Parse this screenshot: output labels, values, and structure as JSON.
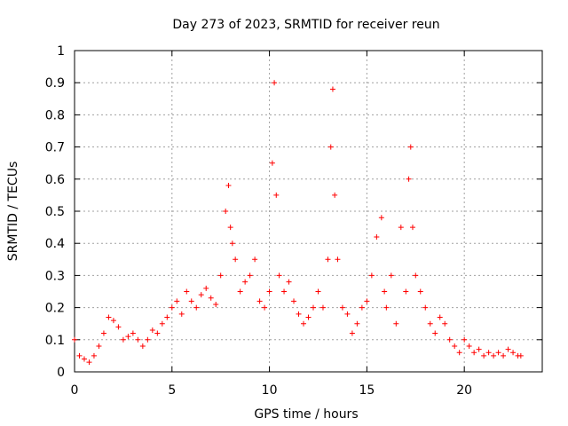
{
  "chart_data": {
    "type": "scatter",
    "title": "Day 273 of 2023, SRMTID for receiver reun",
    "xlabel": "GPS time / hours",
    "ylabel": "SRMTID / TECUs",
    "xlim": [
      0,
      24
    ],
    "ylim": [
      0,
      1
    ],
    "xticks": [
      0,
      5,
      10,
      15,
      20
    ],
    "xtick_labels": [
      "0",
      "5",
      "10",
      "15",
      "20"
    ],
    "yticks": [
      0,
      0.1,
      0.2,
      0.3,
      0.4,
      0.5,
      0.6,
      0.7,
      0.8,
      0.9,
      1
    ],
    "ytick_labels": [
      "0",
      "0.1",
      "0.2",
      "0.3",
      "0.4",
      "0.5",
      "0.6",
      "0.7",
      "0.8",
      "0.9",
      "1"
    ],
    "grid": true,
    "marker": "+",
    "series": [
      {
        "name": "SRMTID",
        "color": "#ff0000",
        "x": [
          0.0,
          0.25,
          0.5,
          0.75,
          1.0,
          1.25,
          1.5,
          1.75,
          2.0,
          2.25,
          2.5,
          2.75,
          3.0,
          3.25,
          3.5,
          3.75,
          4.0,
          4.25,
          4.5,
          4.75,
          5.0,
          5.25,
          5.5,
          5.75,
          6.0,
          6.25,
          6.5,
          6.75,
          7.0,
          7.25,
          7.5,
          7.75,
          7.9,
          8.0,
          8.1,
          8.25,
          8.5,
          8.75,
          9.0,
          9.25,
          9.5,
          9.75,
          10.0,
          10.15,
          10.25,
          10.35,
          10.5,
          10.75,
          11.0,
          11.25,
          11.5,
          11.75,
          12.0,
          12.25,
          12.5,
          12.75,
          13.0,
          13.15,
          13.25,
          13.35,
          13.5,
          13.75,
          14.0,
          14.25,
          14.5,
          14.75,
          15.0,
          15.25,
          15.5,
          15.75,
          15.9,
          16.0,
          16.25,
          16.5,
          16.75,
          17.0,
          17.15,
          17.25,
          17.35,
          17.5,
          17.75,
          18.0,
          18.25,
          18.5,
          18.75,
          19.0,
          19.25,
          19.5,
          19.75,
          20.0,
          20.25,
          20.5,
          20.75,
          21.0,
          21.25,
          21.5,
          21.75,
          22.0,
          22.25,
          22.5,
          22.75,
          22.9
        ],
        "y": [
          0.1,
          0.05,
          0.04,
          0.03,
          0.05,
          0.08,
          0.12,
          0.17,
          0.16,
          0.14,
          0.1,
          0.11,
          0.12,
          0.1,
          0.08,
          0.1,
          0.13,
          0.12,
          0.15,
          0.17,
          0.2,
          0.22,
          0.18,
          0.25,
          0.22,
          0.2,
          0.24,
          0.26,
          0.23,
          0.21,
          0.3,
          0.5,
          0.58,
          0.45,
          0.4,
          0.35,
          0.25,
          0.28,
          0.3,
          0.35,
          0.22,
          0.2,
          0.25,
          0.65,
          0.9,
          0.55,
          0.3,
          0.25,
          0.28,
          0.22,
          0.18,
          0.15,
          0.17,
          0.2,
          0.25,
          0.2,
          0.35,
          0.7,
          0.88,
          0.55,
          0.35,
          0.2,
          0.18,
          0.12,
          0.15,
          0.2,
          0.22,
          0.3,
          0.42,
          0.48,
          0.25,
          0.2,
          0.3,
          0.15,
          0.45,
          0.25,
          0.6,
          0.7,
          0.45,
          0.3,
          0.25,
          0.2,
          0.15,
          0.12,
          0.17,
          0.15,
          0.1,
          0.08,
          0.06,
          0.1,
          0.08,
          0.06,
          0.07,
          0.05,
          0.06,
          0.05,
          0.06,
          0.05,
          0.07,
          0.06,
          0.05,
          0.05
        ]
      }
    ]
  }
}
